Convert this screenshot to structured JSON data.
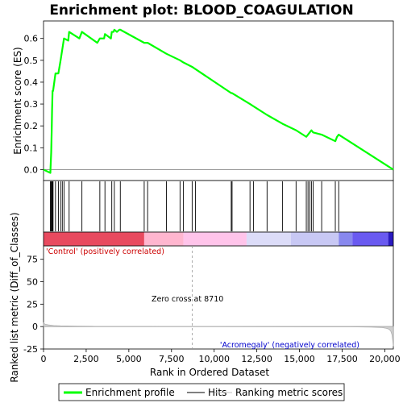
{
  "chart_data": {
    "type": "line",
    "title": "Enrichment plot: BLOOD_COAGULATION",
    "top_panel": {
      "ylabel": "Enrichment score (ES)",
      "ylim": [
        -0.05,
        0.68
      ],
      "yticks": [
        0.0,
        0.1,
        0.2,
        0.3,
        0.4,
        0.5,
        0.6
      ],
      "ytick_labels": [
        "0.0",
        "0.1",
        "0.2",
        "0.3",
        "0.4",
        "0.5",
        "0.6"
      ],
      "series": [
        {
          "name": "Enrichment profile",
          "color": "#00ff00",
          "x": [
            0,
            400,
            450,
            480,
            500,
            530,
            560,
            700,
            870,
            1000,
            1100,
            1200,
            1450,
            1500,
            2100,
            2250,
            3150,
            3300,
            3550,
            3600,
            3950,
            4000,
            4100,
            4150,
            4300,
            4450,
            4500,
            5900,
            6100,
            7200,
            8000,
            8200,
            8710,
            8900,
            11000,
            11050,
            12100,
            12300,
            13100,
            14000,
            14800,
            15400,
            15500,
            15600,
            15700,
            15800,
            16300,
            17100,
            17200,
            17300,
            20500
          ],
          "y": [
            0.0,
            -0.015,
            0.08,
            0.18,
            0.27,
            0.36,
            0.36,
            0.44,
            0.44,
            0.5,
            0.55,
            0.6,
            0.59,
            0.63,
            0.6,
            0.63,
            0.58,
            0.6,
            0.6,
            0.62,
            0.6,
            0.63,
            0.63,
            0.64,
            0.63,
            0.64,
            0.64,
            0.58,
            0.58,
            0.53,
            0.5,
            0.49,
            0.47,
            0.46,
            0.35,
            0.35,
            0.3,
            0.29,
            0.25,
            0.21,
            0.18,
            0.15,
            0.16,
            0.17,
            0.18,
            0.17,
            0.16,
            0.13,
            0.15,
            0.16,
            0.0
          ]
        }
      ]
    },
    "hits": [
      400,
      450,
      480,
      520,
      560,
      700,
      870,
      1000,
      1100,
      1200,
      1500,
      2250,
      3300,
      3600,
      4000,
      4150,
      4500,
      5900,
      6100,
      7200,
      8000,
      8200,
      8710,
      8900,
      11000,
      11050,
      12100,
      12300,
      13100,
      14000,
      14800,
      15400,
      15500,
      15600,
      15700,
      15800,
      16300,
      17100,
      17300
    ],
    "bottom_panel": {
      "ylabel": "Ranked list metric (Diff_of_Classes)",
      "xlabel": "Rank in Ordered Dataset",
      "ylim": [
        -25,
        90
      ],
      "yticks": [
        -25,
        0,
        25,
        50,
        75
      ],
      "ytick_labels": [
        "-25",
        "0",
        "25",
        "50",
        "75"
      ],
      "metric_x": [
        0,
        100,
        300,
        600,
        1000,
        2000,
        2800,
        3000,
        5000,
        8710,
        12000,
        18000,
        19200,
        19800,
        20100,
        20250,
        20350,
        20420,
        20470,
        20500
      ],
      "metric_y": [
        4.0,
        2.5,
        1.8,
        1.2,
        0.8,
        0.5,
        0.4,
        0.2,
        0.1,
        0.0,
        -0.1,
        -0.3,
        -0.6,
        -1.0,
        -2.0,
        -3.0,
        -5.0,
        -9.0,
        -16.0,
        -22.0
      ],
      "zero_cross_label": "Zero cross at 8710",
      "zero_cross_x": 8710,
      "positive_label": "'Control' (positively correlated)",
      "negative_label": "'Acromegaly' (negatively correlated)",
      "positive_color": "#cc0000",
      "negative_color": "#0000cc"
    },
    "xlim": [
      0,
      20500
    ],
    "xticks": [
      0,
      2500,
      5000,
      7500,
      10000,
      12500,
      15000,
      17500,
      20000
    ],
    "xtick_labels": [
      "0",
      "2,500",
      "5,000",
      "7,500",
      "10,000",
      "12,500",
      "15,000",
      "17,500",
      "20,000"
    ],
    "heatmap_segments": [
      {
        "start": 0,
        "end": 5900,
        "color": "#e84a5f"
      },
      {
        "start": 5900,
        "end": 8200,
        "color": "#ffb6cf"
      },
      {
        "start": 8200,
        "end": 11900,
        "color": "#ffc4ea"
      },
      {
        "start": 11900,
        "end": 14500,
        "color": "#dcdcf8"
      },
      {
        "start": 14500,
        "end": 17300,
        "color": "#c8c8f4"
      },
      {
        "start": 17300,
        "end": 18100,
        "color": "#8888ee"
      },
      {
        "start": 18100,
        "end": 20200,
        "color": "#6a5af0"
      },
      {
        "start": 20200,
        "end": 20500,
        "color": "#2a1ac0"
      }
    ],
    "legend": [
      {
        "label": "Enrichment profile",
        "color": "#00ff00"
      },
      {
        "label": "Hits",
        "color": "#000000"
      },
      {
        "label": "Ranking metric scores",
        "color": "#c0c0c0"
      }
    ]
  }
}
